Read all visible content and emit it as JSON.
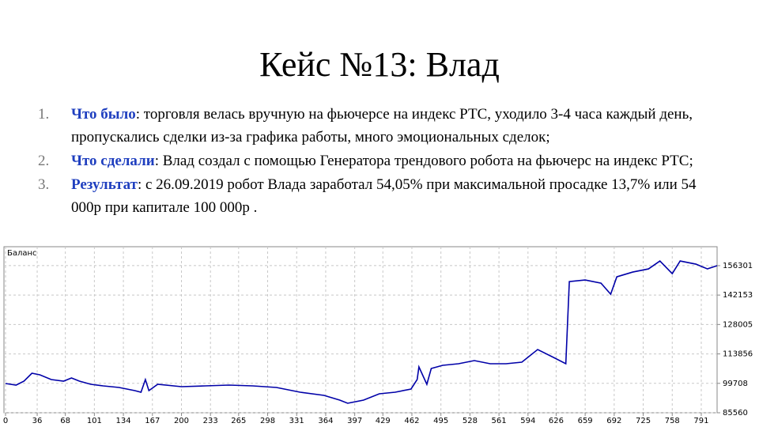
{
  "title": "Кейс №13: Влад",
  "items": [
    {
      "number": "1.",
      "label": "Что было",
      "text": ": торговля велась вручную на фьючерсе на индекс РТС, уходило 3-4 часа каждый день, пропускались сделки из-за графика работы, много эмоциональных сделок;"
    },
    {
      "number": "2.",
      "label": "Что сделали",
      "text": ": Влад создал с помощью Генератора трендового робота на фьючерс на индекс РТС;"
    },
    {
      "number": "3.",
      "label": "Результат",
      "text": ": с 26.09.2019 робот Влада заработал 54,05% при максимальной просадке 13,7% или 54 000р при капитале 100 000р ."
    }
  ],
  "chart_data": {
    "type": "line",
    "title": "Баланс",
    "color": "#0000a8",
    "grid": true,
    "x": [
      0,
      12,
      21,
      30,
      39,
      52,
      66,
      75,
      84,
      97,
      111,
      129,
      147,
      154,
      159,
      163,
      173,
      200,
      227,
      254,
      281,
      308,
      335,
      362,
      380,
      389,
      407,
      425,
      443,
      461,
      468,
      470,
      479,
      484,
      497,
      515,
      533,
      551,
      569,
      587,
      605,
      623,
      637,
      641,
      659,
      677,
      688,
      695,
      713,
      731,
      744,
      758,
      767,
      785,
      798,
      809
    ],
    "values": [
      99630,
      98870,
      100770,
      104570,
      103810,
      101530,
      100770,
      102290,
      100770,
      99250,
      98490,
      97730,
      96210,
      95450,
      101530,
      96210,
      99250,
      98110,
      98490,
      98870,
      98490,
      97730,
      95450,
      93930,
      91650,
      90130,
      91650,
      94690,
      95450,
      96970,
      101530,
      107610,
      99250,
      106850,
      108370,
      109130,
      110650,
      109130,
      109130,
      109890,
      115970,
      112170,
      109130,
      148650,
      149410,
      147890,
      142570,
      150930,
      153210,
      154730,
      158530,
      152450,
      158530,
      157010,
      154730,
      156260
    ],
    "xlim": [
      0,
      809
    ],
    "ylim": [
      85560,
      165400
    ],
    "xticks": [
      0,
      36,
      68,
      101,
      134,
      167,
      200,
      233,
      265,
      298,
      331,
      364,
      397,
      429,
      462,
      495,
      528,
      561,
      594,
      626,
      659,
      692,
      725,
      758,
      791
    ],
    "yticks": [
      85560,
      99708,
      113856,
      128005,
      142153,
      156301
    ]
  }
}
